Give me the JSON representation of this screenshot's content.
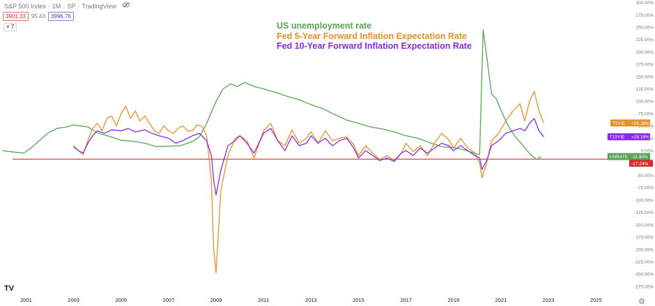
{
  "header": {
    "symbol": "S&P 500 Index",
    "interval": "1M",
    "exchange": "SP",
    "source": "TradingView",
    "eye_icon": "eye-icon",
    "bid": "3901.33",
    "spread": "95.43",
    "ask": "3996.76",
    "collapse_label": "˅ 7"
  },
  "legend": [
    {
      "label": "US unemployment rate",
      "color": "#5aa356"
    },
    {
      "label": "Fed 5-Year Forward Inflation Expectation Rate",
      "color": "#e6902e"
    },
    {
      "label": "Fed 10-Year Forward Inflation Expectation Rate",
      "color": "#8a2be2"
    }
  ],
  "footer": {
    "logo": "TV",
    "settings_icon": "gear-icon"
  },
  "chart_data": {
    "type": "line",
    "title": "",
    "xlabel": "",
    "ylabel": "",
    "xlim": [
      1999.9,
      2026.4
    ],
    "ylim": [
      -285,
      305
    ],
    "x_ticks": [
      2001,
      2003,
      2005,
      2007,
      2009,
      2011,
      2013,
      2015,
      2017,
      2019,
      2021,
      2023,
      2025
    ],
    "y_ticks": [
      300,
      275,
      250,
      225,
      200,
      175,
      150,
      125,
      100,
      75,
      50,
      25,
      0,
      -25,
      -50,
      -75,
      -100,
      -125,
      -150,
      -175,
      -200,
      -225,
      -250,
      -275
    ],
    "y_tick_suffix": ".00%",
    "horizontal_line": {
      "value": -17.24,
      "color": "#d32f2f"
    },
    "series": [
      {
        "name": "US unemployment rate",
        "short": "UNRATE",
        "color": "#5aa356",
        "last_value_label": "-11.90%",
        "x": [
          2000.0,
          2000.5,
          2000.9,
          2001.2,
          2001.6,
          2001.9,
          2002.3,
          2002.7,
          2003.0,
          2003.3,
          2003.6,
          2004.0,
          2004.5,
          2005.0,
          2005.5,
          2006.0,
          2006.5,
          2007.0,
          2007.5,
          2008.0,
          2008.3,
          2008.6,
          2009.0,
          2009.3,
          2009.6,
          2009.9,
          2010.2,
          2010.6,
          2011.0,
          2011.5,
          2012.0,
          2012.5,
          2013.0,
          2013.5,
          2014.0,
          2014.5,
          2015.0,
          2015.5,
          2016.0,
          2016.5,
          2017.0,
          2017.5,
          2018.0,
          2018.5,
          2019.0,
          2019.5,
          2019.9,
          2020.1,
          2020.25,
          2020.4,
          2020.6,
          2020.8,
          2021.0,
          2021.3,
          2021.6,
          2021.9,
          2022.2,
          2022.5,
          2022.7
        ],
        "values": [
          0,
          -3,
          -5,
          5,
          22,
          35,
          45,
          48,
          52,
          50,
          48,
          36,
          29,
          21,
          19,
          15,
          8,
          9,
          10,
          18,
          28,
          55,
          100,
          125,
          135,
          130,
          138,
          130,
          125,
          118,
          110,
          103,
          93,
          85,
          73,
          62,
          55,
          48,
          44,
          38,
          30,
          25,
          16,
          8,
          6,
          1,
          -6,
          -8,
          245,
          190,
          115,
          105,
          82,
          50,
          28,
          12,
          -6,
          -18,
          -12
        ]
      },
      {
        "name": "Fed 5-Year Forward Inflation Expectation Rate",
        "short": "T5YIE",
        "color": "#e6902e",
        "last_value_label": "+56.38%",
        "x": [
          2003.0,
          2003.2,
          2003.4,
          2003.6,
          2003.8,
          2004.0,
          2004.2,
          2004.4,
          2004.6,
          2004.8,
          2005.0,
          2005.2,
          2005.4,
          2005.6,
          2005.8,
          2006.0,
          2006.2,
          2006.4,
          2006.6,
          2006.8,
          2007.0,
          2007.2,
          2007.4,
          2007.6,
          2007.8,
          2008.0,
          2008.2,
          2008.4,
          2008.6,
          2008.8,
          2008.9,
          2009.0,
          2009.2,
          2009.5,
          2009.8,
          2010.0,
          2010.3,
          2010.6,
          2011.0,
          2011.3,
          2011.6,
          2011.9,
          2012.2,
          2012.5,
          2012.8,
          2013.0,
          2013.3,
          2013.6,
          2013.9,
          2014.2,
          2014.5,
          2014.8,
          2015.0,
          2015.3,
          2015.6,
          2015.9,
          2016.2,
          2016.5,
          2016.8,
          2017.0,
          2017.3,
          2017.6,
          2017.9,
          2018.2,
          2018.5,
          2018.8,
          2019.0,
          2019.3,
          2019.6,
          2019.9,
          2020.1,
          2020.2,
          2020.4,
          2020.6,
          2020.9,
          2021.2,
          2021.5,
          2021.8,
          2022.0,
          2022.2,
          2022.4,
          2022.6,
          2022.8
        ],
        "values": [
          10,
          0,
          -8,
          20,
          45,
          55,
          40,
          65,
          70,
          50,
          75,
          90,
          65,
          80,
          60,
          70,
          55,
          40,
          35,
          50,
          40,
          35,
          45,
          50,
          40,
          40,
          52,
          50,
          30,
          -60,
          -200,
          -248,
          -80,
          -10,
          25,
          30,
          20,
          -15,
          40,
          55,
          20,
          10,
          42,
          15,
          25,
          38,
          15,
          40,
          20,
          25,
          28,
          12,
          -10,
          10,
          -5,
          -18,
          -10,
          -20,
          -5,
          15,
          -2,
          10,
          -10,
          15,
          35,
          22,
          5,
          25,
          5,
          -5,
          -25,
          -55,
          -25,
          20,
          35,
          60,
          80,
          95,
          60,
          100,
          120,
          80,
          56
        ]
      },
      {
        "name": "Fed 10-Year Forward Inflation Expectation Rate",
        "short": "T10YIE",
        "color": "#8a2be2",
        "last_value_label": "+28.18%",
        "x": [
          2003.0,
          2003.2,
          2003.4,
          2003.6,
          2003.8,
          2004.0,
          2004.3,
          2004.6,
          2005.0,
          2005.3,
          2005.6,
          2006.0,
          2006.3,
          2006.6,
          2007.0,
          2007.3,
          2007.6,
          2008.0,
          2008.3,
          2008.6,
          2008.8,
          2008.9,
          2009.0,
          2009.2,
          2009.5,
          2009.8,
          2010.0,
          2010.3,
          2010.6,
          2011.0,
          2011.3,
          2011.6,
          2011.9,
          2012.2,
          2012.5,
          2012.8,
          2013.0,
          2013.3,
          2013.6,
          2013.9,
          2014.2,
          2014.5,
          2014.8,
          2015.0,
          2015.3,
          2015.6,
          2015.9,
          2016.2,
          2016.5,
          2016.8,
          2017.0,
          2017.3,
          2017.6,
          2017.9,
          2018.2,
          2018.5,
          2018.8,
          2019.0,
          2019.3,
          2019.6,
          2019.9,
          2020.1,
          2020.2,
          2020.4,
          2020.6,
          2020.9,
          2021.2,
          2021.5,
          2021.8,
          2022.0,
          2022.2,
          2022.4,
          2022.6,
          2022.8
        ],
        "values": [
          8,
          0,
          -5,
          15,
          30,
          40,
          35,
          42,
          40,
          45,
          38,
          42,
          35,
          30,
          25,
          15,
          20,
          30,
          35,
          20,
          -10,
          -60,
          -90,
          -40,
          10,
          20,
          30,
          15,
          -5,
          35,
          45,
          20,
          0,
          30,
          10,
          15,
          30,
          15,
          25,
          10,
          20,
          25,
          5,
          -15,
          0,
          -10,
          -20,
          -15,
          -22,
          -5,
          0,
          -10,
          5,
          -5,
          5,
          15,
          10,
          0,
          10,
          0,
          -10,
          -15,
          -38,
          -20,
          10,
          20,
          35,
          40,
          45,
          40,
          55,
          65,
          40,
          28
        ]
      }
    ]
  }
}
